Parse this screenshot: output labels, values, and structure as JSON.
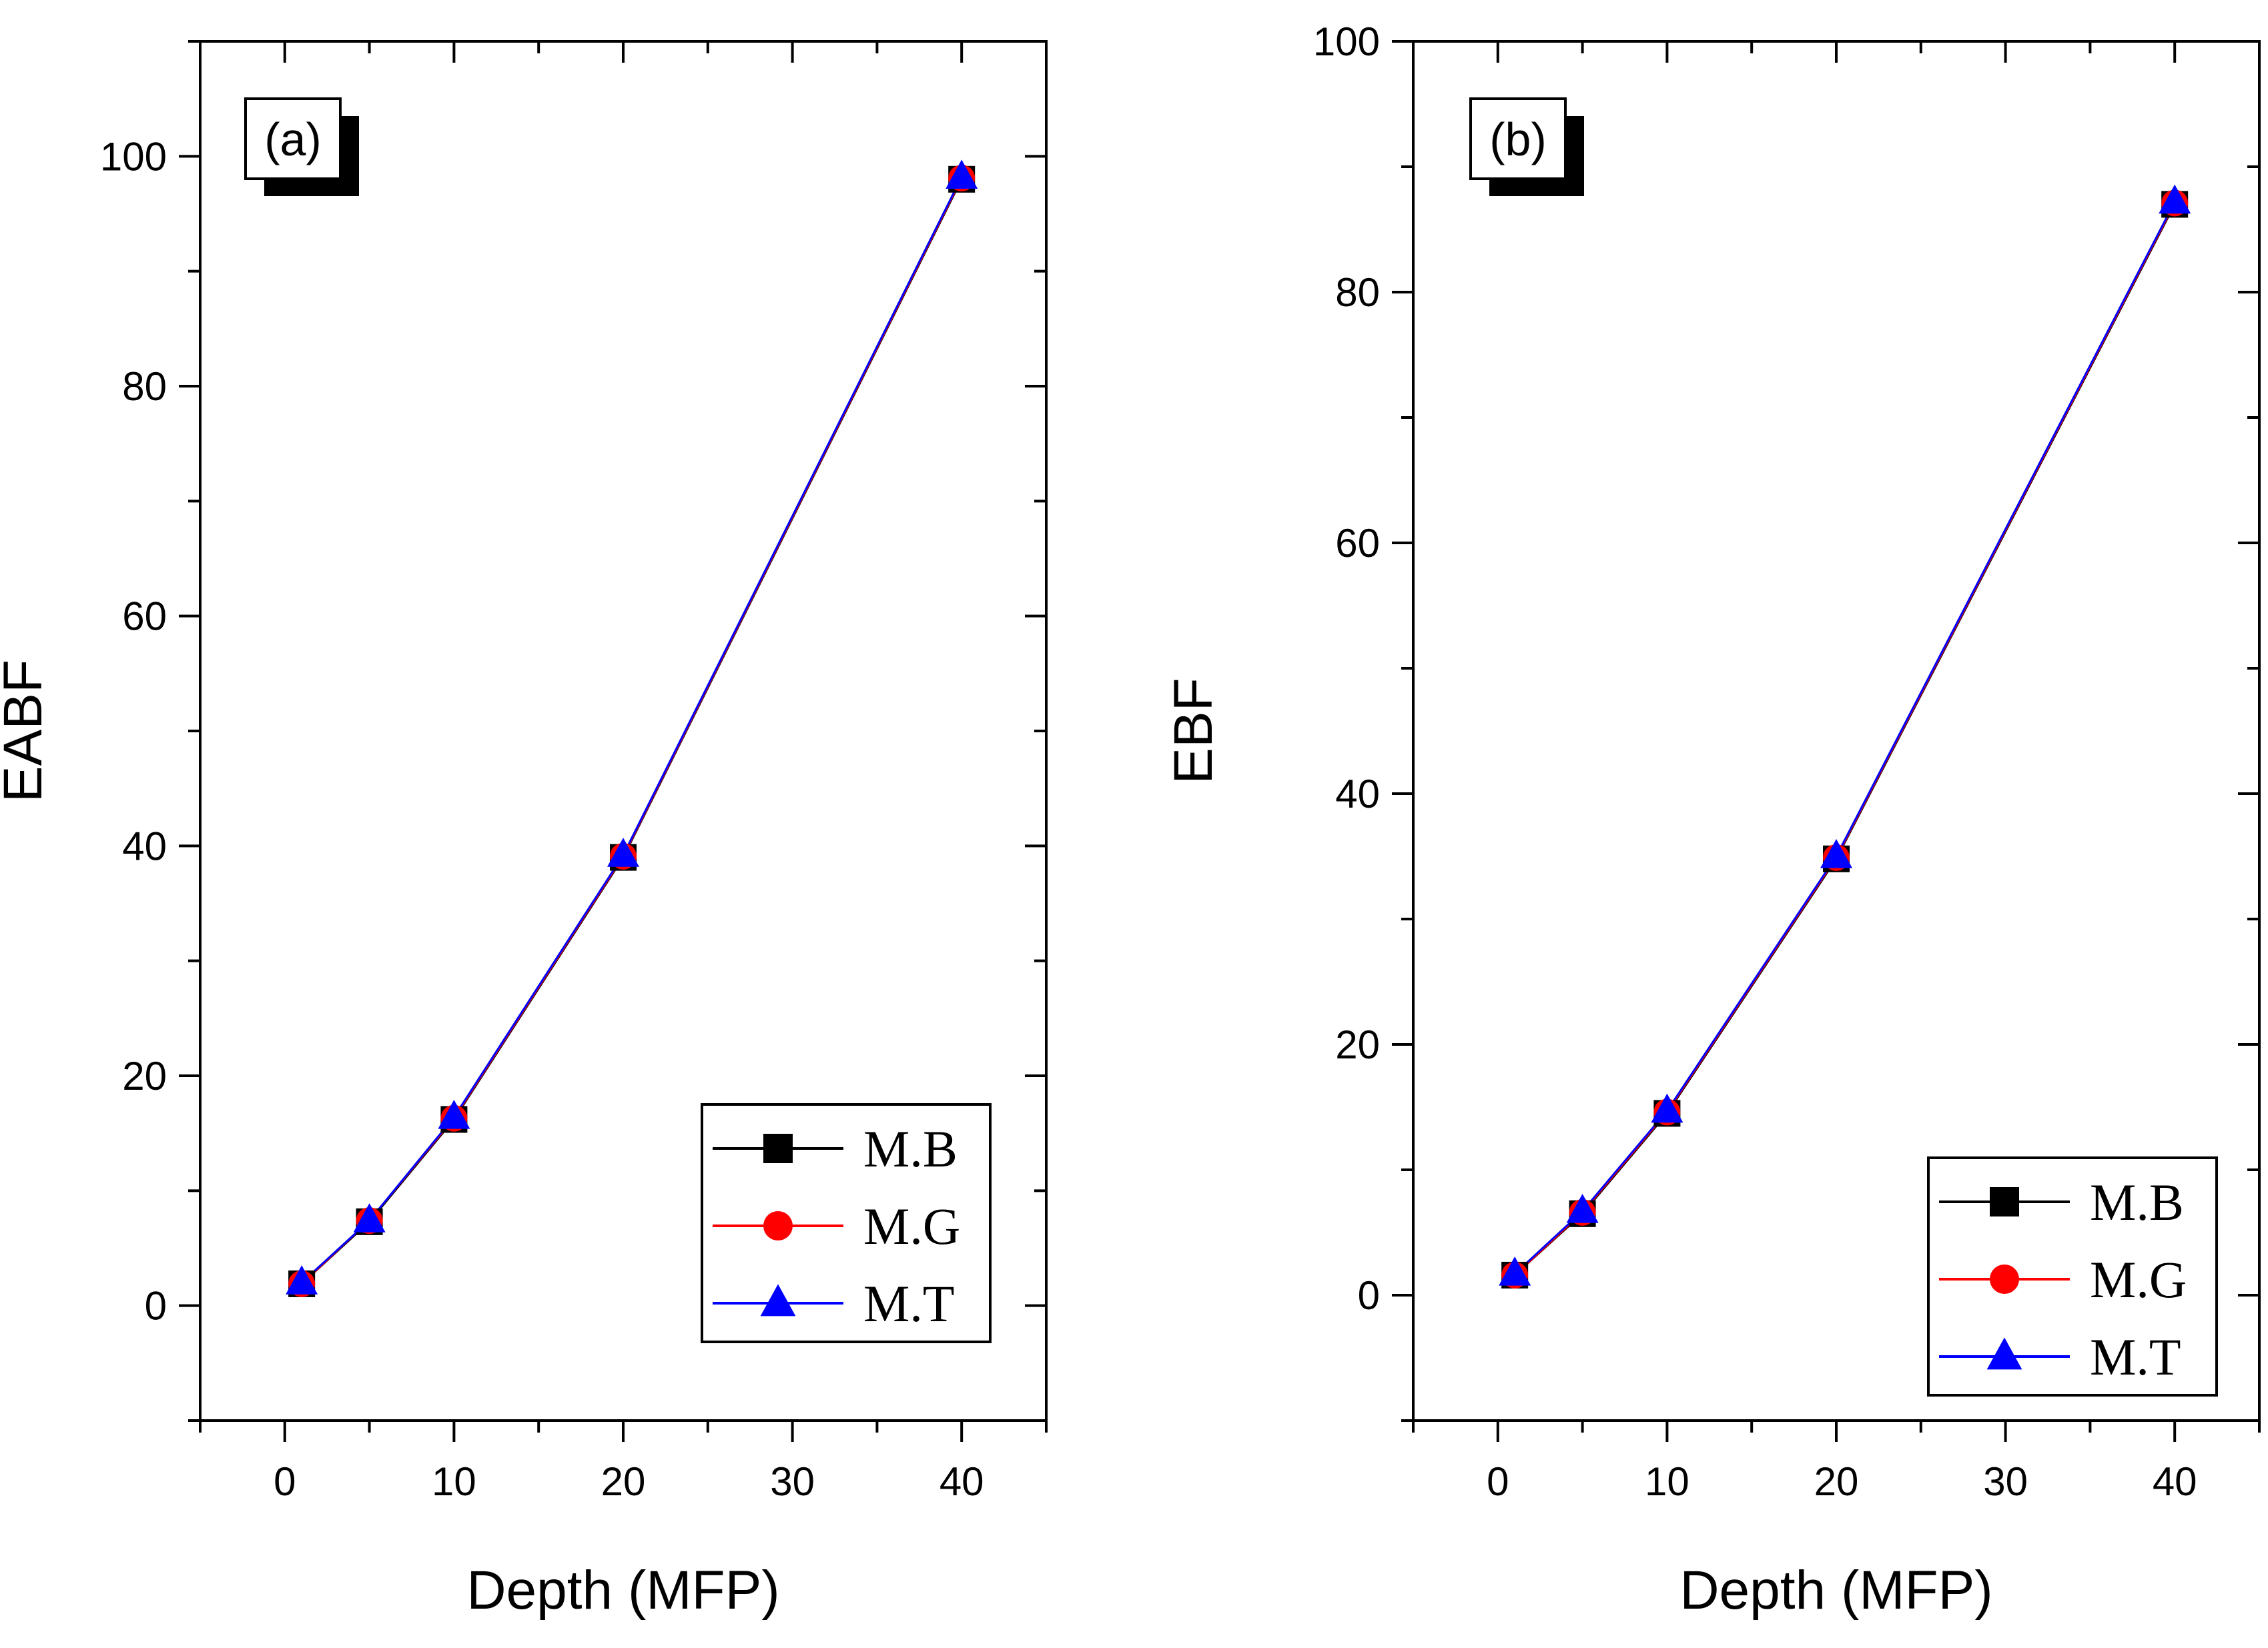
{
  "chart_data": [
    {
      "type": "line",
      "panel_label": "(a)",
      "xlabel": "Depth (MFP)",
      "ylabel": "EABF",
      "xlim": [
        -5,
        45
      ],
      "ylim": [
        -10,
        110
      ],
      "xticks": [
        0,
        10,
        20,
        30,
        40
      ],
      "xtick_labels": [
        "0",
        "10",
        "20",
        "30",
        "40"
      ],
      "yticks": [
        0,
        20,
        40,
        60,
        80,
        100
      ],
      "ytick_labels": [
        "0",
        "20",
        "40",
        "60",
        "80",
        "100"
      ],
      "grid": false,
      "legend_position": "bottom-right",
      "x": [
        1,
        5,
        10,
        20,
        40
      ],
      "series": [
        {
          "name": "M.B",
          "marker": "square",
          "color": "#000000",
          "values": [
            1.9,
            7.3,
            16.2,
            39.0,
            98.0
          ]
        },
        {
          "name": "M.G",
          "marker": "circle",
          "color": "#ff0000",
          "values": [
            1.9,
            7.4,
            16.3,
            39.1,
            98.1
          ]
        },
        {
          "name": "M.T",
          "marker": "triangle",
          "color": "#0000ff",
          "values": [
            2.0,
            7.4,
            16.4,
            39.2,
            98.2
          ]
        }
      ]
    },
    {
      "type": "line",
      "panel_label": "(b)",
      "xlabel": "Depth (MFP)",
      "ylabel": "EBF",
      "xlim": [
        -5,
        45
      ],
      "ylim": [
        -10,
        100
      ],
      "xticks": [
        0,
        10,
        20,
        30,
        40
      ],
      "xtick_labels": [
        "0",
        "10",
        "20",
        "30",
        "40"
      ],
      "yticks": [
        0,
        20,
        40,
        60,
        80,
        100
      ],
      "ytick_labels": [
        "0",
        "20",
        "40",
        "60",
        "80",
        "100"
      ],
      "grid": false,
      "legend_position": "bottom-right",
      "x": [
        1,
        5,
        10,
        20,
        40
      ],
      "series": [
        {
          "name": "M.B",
          "marker": "square",
          "color": "#000000",
          "values": [
            1.6,
            6.5,
            14.5,
            34.8,
            87.0
          ]
        },
        {
          "name": "M.G",
          "marker": "circle",
          "color": "#ff0000",
          "values": [
            1.6,
            6.6,
            14.6,
            34.9,
            87.1
          ]
        },
        {
          "name": "M.T",
          "marker": "triangle",
          "color": "#0000ff",
          "values": [
            1.7,
            6.7,
            14.7,
            35.0,
            87.2
          ]
        }
      ]
    }
  ]
}
